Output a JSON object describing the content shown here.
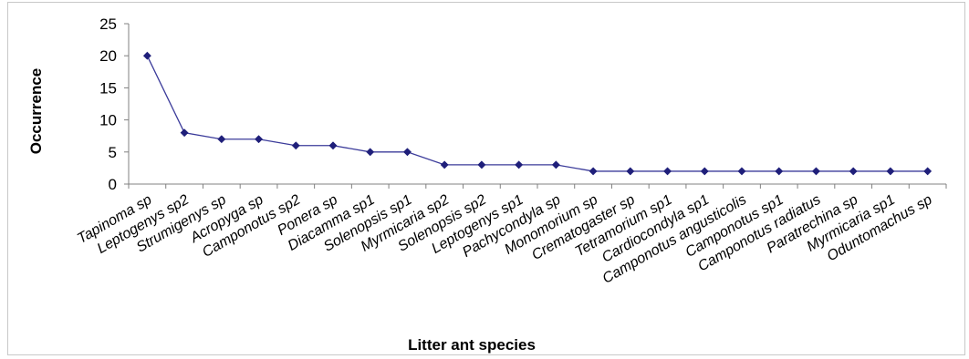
{
  "chart_data": {
    "type": "line",
    "title": "",
    "xlabel": "Litter ant species",
    "ylabel": "Occurrence",
    "ylim": [
      0,
      25
    ],
    "yticks": [
      0,
      5,
      10,
      15,
      20,
      25
    ],
    "grid": false,
    "legend": "none",
    "categories": [
      "Tapinoma sp",
      "Leptogenys sp2",
      "Strumigenys sp",
      "Acropyga sp",
      "Camponotus sp2",
      "Ponera sp",
      "Diacamma sp1",
      "Solenopsis sp1",
      "Myrmicaria sp2",
      "Solenopsis sp2",
      "Leptogenys sp1",
      "Pachycondyla sp",
      "Monomorium sp",
      "Crematogaster sp",
      "Tetramorium sp1",
      "Cardiocondyla sp1",
      "Camponotus angusticolis",
      "Camponotus sp1",
      "Camponotus radiatus",
      "Paratrechina sp",
      "Myrmicaria sp1",
      "Oduntomachus sp"
    ],
    "series": [
      {
        "values": [
          20,
          8,
          7,
          7,
          6,
          6,
          5,
          5,
          3,
          3,
          3,
          3,
          2,
          2,
          2,
          2,
          2,
          2,
          2,
          2,
          2,
          2
        ]
      }
    ],
    "colors": {
      "line": "#3b3b9a",
      "marker": "#1f1f7a",
      "axis": "#808080"
    }
  }
}
